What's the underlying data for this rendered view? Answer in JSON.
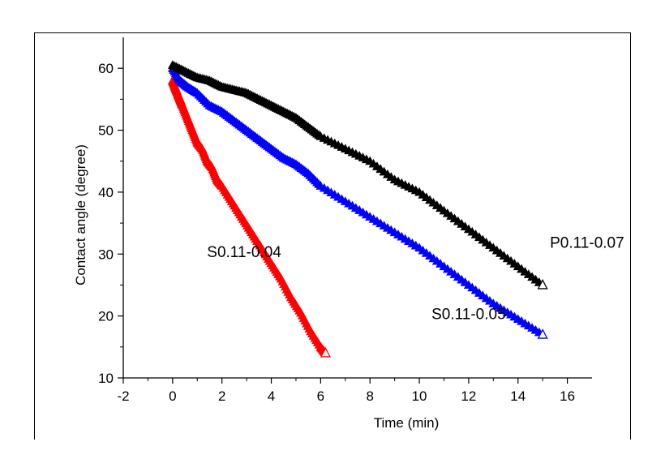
{
  "chart_data": {
    "type": "scatter",
    "title": "",
    "xlabel": "Time (min)",
    "ylabel": "Contact angle (degree)",
    "xlim": [
      -2,
      17
    ],
    "ylim": [
      10,
      65
    ],
    "xticks": [
      -2,
      0,
      2,
      4,
      6,
      8,
      10,
      12,
      14,
      16
    ],
    "yticks": [
      10,
      20,
      30,
      40,
      50,
      60
    ],
    "grid": false,
    "marker": "triangle-up",
    "series": [
      {
        "name": "S0.11-0.04",
        "color": "#ff0000",
        "x": [
          0.0,
          0.1,
          0.2,
          0.3,
          0.4,
          0.6,
          0.8,
          1.0,
          1.2,
          1.4,
          1.6,
          1.8,
          2.0,
          2.4,
          2.8,
          3.2,
          3.6,
          4.0,
          4.4,
          4.8,
          5.2,
          5.6,
          6.0,
          6.2
        ],
        "y": [
          58,
          57,
          56,
          55,
          54,
          52,
          50,
          48,
          47,
          45,
          44,
          42,
          41,
          38.5,
          36,
          33.5,
          31,
          28.5,
          26,
          23,
          20.5,
          17.5,
          15,
          14
        ]
      },
      {
        "name": "S0.11-0.05",
        "color": "#0000ff",
        "x": [
          0.0,
          0.3,
          0.6,
          1.0,
          1.5,
          2.0,
          2.5,
          3.0,
          3.5,
          4.0,
          4.5,
          5.0,
          5.5,
          6.0,
          7.0,
          8.0,
          9.0,
          10.0,
          11.0,
          12.0,
          13.0,
          14.0,
          15.0
        ],
        "y": [
          60,
          58,
          57,
          56,
          54,
          53,
          51.5,
          50,
          48.5,
          47,
          45.5,
          44.5,
          43,
          41,
          38.5,
          36,
          33.5,
          31,
          28,
          25,
          22,
          19.5,
          17
        ]
      },
      {
        "name": "P0.11-0.07",
        "color": "#000000",
        "x": [
          0.0,
          0.5,
          1.0,
          1.5,
          2.0,
          2.5,
          3.0,
          3.5,
          4.0,
          4.5,
          5.0,
          5.5,
          6.0,
          7.0,
          8.0,
          9.0,
          10.0,
          11.0,
          12.0,
          13.0,
          14.0,
          15.0
        ],
        "y": [
          60.5,
          59.5,
          58.5,
          58,
          57,
          56.5,
          56,
          55,
          54,
          53,
          52,
          50.5,
          49,
          47,
          45,
          42,
          40,
          37,
          34,
          31,
          28,
          25
        ]
      }
    ],
    "annotations": [
      {
        "text": "S0.11-0.04",
        "x": 2.9,
        "y": 29.5
      },
      {
        "text": "S0.11-0.05",
        "x": 12.0,
        "y": 19.5
      },
      {
        "text": "P0.11-0.07",
        "x": 16.8,
        "y": 31.0
      }
    ]
  }
}
